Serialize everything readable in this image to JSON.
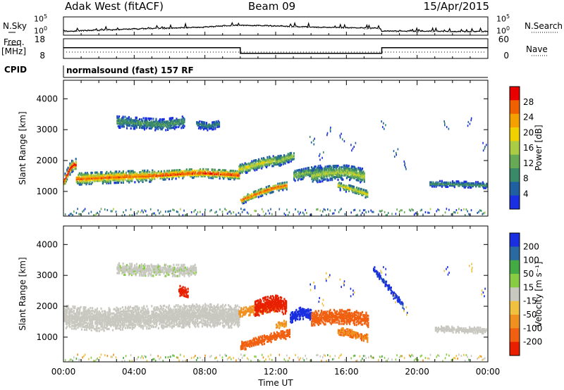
{
  "header": {
    "station": "Adak West (fitACF)",
    "beam": "Beam 09",
    "date": "15/Apr/2015"
  },
  "top_panels": {
    "nsky_label": "N.Sky",
    "nsearch_label": "N.Search",
    "noise_ticks": [
      "10^5",
      "10^0"
    ],
    "freq_label": "Freq.",
    "freq_unit": "[MHz]",
    "freq_ticks": [
      "18",
      "8"
    ],
    "nave_label": "Nave",
    "nave_ticks": [
      "60",
      "0"
    ],
    "cpid_label": "CPID",
    "cpid_text": "normalsound (fast) 157 RF"
  },
  "colors": {
    "power_scale": [
      "#1a2fe0",
      "#2060a0",
      "#3a8a6a",
      "#66aa55",
      "#aacc44",
      "#f0d000",
      "#f4a000",
      "#f06000",
      "#e80000"
    ],
    "velocity_scale": [
      "#1a2fe0",
      "#2a6aa0",
      "#44aa44",
      "#88cc44",
      "#c8c8c0",
      "#f0c040",
      "#f09020",
      "#f06010",
      "#e82000"
    ]
  },
  "chart_data": [
    {
      "type": "line",
      "name": "noise",
      "x": [
        0,
        2,
        4,
        6,
        8,
        9,
        10,
        12,
        14,
        16,
        17.9,
        18,
        20,
        22,
        24
      ],
      "y_log": [
        0.4,
        0.8,
        1.2,
        1.5,
        1.8,
        2.2,
        2.4,
        2.2,
        1.8,
        1.6,
        1.4,
        0.5,
        0.5,
        0.4,
        0.4
      ],
      "xlim": [
        0,
        24
      ]
    },
    {
      "type": "line",
      "name": "frequency",
      "x": [
        0,
        10,
        10,
        18,
        18,
        24
      ],
      "y": [
        13.5,
        13.5,
        10.2,
        10.2,
        13.5,
        13.5
      ],
      "ylim": [
        8,
        18
      ],
      "xlim": [
        0,
        24
      ]
    },
    {
      "type": "heatmap",
      "name": "power",
      "xlabel": "",
      "ylabel": "Slant Range [km]",
      "xlim": [
        0,
        24
      ],
      "ylim": [
        200,
        4600
      ],
      "y_ticks": [
        1000,
        2000,
        3000,
        4000
      ],
      "colorbar_label": "Power [dB]",
      "colorbar_ticks": [
        4,
        8,
        12,
        16,
        20,
        24,
        28
      ],
      "bands": [
        {
          "t0": 0.0,
          "t1": 0.7,
          "r": [
            1320,
            1460,
            1590,
            1740,
            1820,
            1860,
            1860
          ],
          "w": 180,
          "pmax": 30
        },
        {
          "t0": 0.7,
          "t1": 5.0,
          "r": [
            1400,
            1430,
            1460,
            1480,
            1500
          ],
          "w": 190,
          "pmax": 26
        },
        {
          "t0": 5.0,
          "t1": 9.9,
          "r": [
            1500,
            1540,
            1580,
            1590,
            1560,
            1520
          ],
          "w": 150,
          "pmax": 28
        },
        {
          "t0": 3.0,
          "t1": 6.8,
          "r": [
            3250,
            3200,
            3150,
            3250
          ],
          "w": 190,
          "pmax": 10
        },
        {
          "t0": 7.5,
          "t1": 8.8,
          "r": [
            3180,
            3100,
            3180
          ],
          "w": 130,
          "pmax": 8
        },
        {
          "t0": 9.9,
          "t1": 12.3,
          "r": [
            1700,
            1800,
            1900,
            1980,
            2000
          ],
          "w": 170,
          "pmax": 18
        },
        {
          "t0": 10.0,
          "t1": 12.6,
          "r": [
            700,
            850,
            1000,
            1120,
            1180
          ],
          "w": 120,
          "pmax": 27
        },
        {
          "t0": 12.0,
          "t1": 13.0,
          "r": [
            1950,
            2050,
            2150
          ],
          "w": 150,
          "pmax": 16
        },
        {
          "t0": 13.0,
          "t1": 14.5,
          "r": [
            1500,
            1600,
            1680
          ],
          "w": 170,
          "pmax": 14
        },
        {
          "t0": 14.0,
          "t1": 17.0,
          "r": [
            1500,
            1600,
            1620,
            1500
          ],
          "w": 240,
          "pmax": 16
        },
        {
          "t0": 15.5,
          "t1": 17.2,
          "r": [
            1180,
            1100,
            1000,
            900
          ],
          "w": 130,
          "pmax": 18
        },
        {
          "t0": 20.7,
          "t1": 23.9,
          "r": [
            1240,
            1230,
            1210,
            1190
          ],
          "w": 90,
          "pmax": 9
        }
      ]
    },
    {
      "type": "heatmap",
      "name": "velocity",
      "xlabel": "Time UT",
      "ylabel": "Slant Range [km]",
      "xlim": [
        0,
        24
      ],
      "ylim": [
        200,
        4600
      ],
      "x_ticks": [
        "00:00",
        "04:00",
        "08:00",
        "12:00",
        "16:00",
        "20:00",
        "00:00"
      ],
      "y_ticks": [
        1000,
        2000,
        3000,
        4000
      ],
      "colorbar_label": "Velocity [m s⁻¹]",
      "colorbar_ticks": [
        200,
        100,
        50,
        15,
        -15,
        -50,
        -100,
        -200
      ],
      "bands": [
        {
          "t0": 0.0,
          "t1": 9.9,
          "r": [
            1650,
            1550,
            1620,
            1650,
            1700,
            1650
          ],
          "w": 360,
          "v": 0
        },
        {
          "t0": 3.0,
          "t1": 7.5,
          "r": [
            3200,
            3150,
            3150
          ],
          "w": 180,
          "v": 5
        },
        {
          "t0": 6.5,
          "t1": 7.0,
          "r": [
            2500,
            2400
          ],
          "w": 160,
          "v": -180
        },
        {
          "t0": 9.9,
          "t1": 12.2,
          "r": [
            1800,
            1900,
            2000
          ],
          "w": 150,
          "v": -50
        },
        {
          "t0": 10.8,
          "t1": 12.6,
          "r": [
            1900,
            2050,
            2100,
            1950
          ],
          "w": 260,
          "v": -190
        },
        {
          "t0": 10.0,
          "t1": 12.8,
          "r": [
            700,
            850,
            1000,
            1100
          ],
          "w": 140,
          "v": -90
        },
        {
          "t0": 12.0,
          "t1": 12.6,
          "r": [
            1350,
            1450
          ],
          "w": 90,
          "v": -40
        },
        {
          "t0": 12.8,
          "t1": 14.0,
          "r": [
            1600,
            1800,
            1700
          ],
          "w": 200,
          "v": 170
        },
        {
          "t0": 14.0,
          "t1": 17.2,
          "r": [
            1600,
            1650,
            1650,
            1550
          ],
          "w": 230,
          "v": -130
        },
        {
          "t0": 15.5,
          "t1": 17.2,
          "r": [
            1200,
            1100,
            950
          ],
          "w": 120,
          "v": -70
        },
        {
          "t0": 17.5,
          "t1": 19.2,
          "r": [
            3200,
            2600,
            2000
          ],
          "w": 90,
          "v": 160
        },
        {
          "t0": 21.0,
          "t1": 23.9,
          "r": [
            1250,
            1230,
            1200
          ],
          "w": 90,
          "v": 0
        }
      ]
    }
  ]
}
